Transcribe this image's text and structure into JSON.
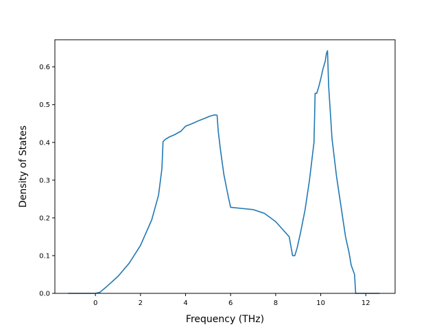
{
  "chart_data": {
    "type": "line",
    "title": "",
    "xlabel": "Frequency (THz)",
    "ylabel": "Density of States",
    "xlim": [
      -1.8,
      13.3
    ],
    "ylim": [
      0.0,
      0.672
    ],
    "grid": false,
    "xticks": [
      0,
      2,
      4,
      6,
      8,
      10,
      12
    ],
    "xtick_labels": [
      "0",
      "2",
      "4",
      "6",
      "8",
      "10",
      "12"
    ],
    "yticks": [
      0.0,
      0.1,
      0.2,
      0.3,
      0.4,
      0.5,
      0.6
    ],
    "ytick_labels": [
      "0.0",
      "0.1",
      "0.2",
      "0.3",
      "0.4",
      "0.5",
      "0.6"
    ],
    "series": [
      {
        "color": "#1f77b4",
        "x": [
          -1.2,
          -0.5,
          0.0,
          0.2,
          0.5,
          1.0,
          1.5,
          2.0,
          2.5,
          2.8,
          2.95,
          3.0,
          3.1,
          3.3,
          3.5,
          3.8,
          4.0,
          4.3,
          4.6,
          4.9,
          5.1,
          5.3,
          5.4,
          5.45,
          5.55,
          5.7,
          5.9,
          6.0,
          6.5,
          7.0,
          7.5,
          8.0,
          8.3,
          8.6,
          8.75,
          8.85,
          8.95,
          9.1,
          9.3,
          9.5,
          9.7,
          9.75,
          9.82,
          9.9,
          10.0,
          10.1,
          10.2,
          10.25,
          10.3,
          10.35,
          10.5,
          10.7,
          10.9,
          11.1,
          11.25,
          11.35,
          11.5,
          11.55,
          12.0,
          12.6
        ],
        "y": [
          0.0,
          0.0,
          0.0,
          0.003,
          0.018,
          0.045,
          0.08,
          0.127,
          0.195,
          0.26,
          0.33,
          0.402,
          0.408,
          0.415,
          0.42,
          0.43,
          0.443,
          0.45,
          0.458,
          0.465,
          0.47,
          0.473,
          0.472,
          0.43,
          0.38,
          0.315,
          0.255,
          0.228,
          0.225,
          0.222,
          0.212,
          0.19,
          0.17,
          0.15,
          0.1,
          0.1,
          0.12,
          0.16,
          0.22,
          0.3,
          0.4,
          0.53,
          0.53,
          0.545,
          0.568,
          0.595,
          0.615,
          0.635,
          0.643,
          0.55,
          0.41,
          0.31,
          0.23,
          0.15,
          0.11,
          0.075,
          0.05,
          0.0,
          0.0,
          0.0
        ]
      }
    ]
  }
}
